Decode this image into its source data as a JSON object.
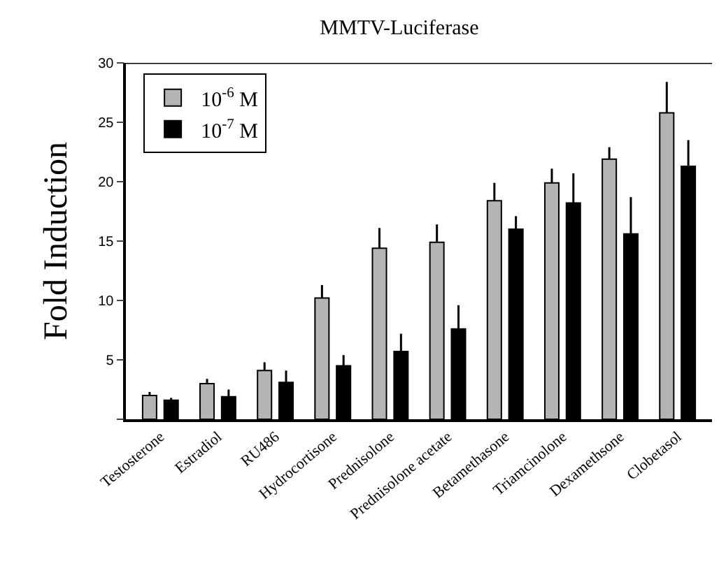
{
  "chart_data": {
    "type": "bar",
    "title": "MMTV-Luciferase",
    "ylabel": "Fold Induction",
    "categories": [
      "Testosterone",
      "Estradiol",
      "RU486",
      "Hydrocortisone",
      "Prednisolone",
      "Prednisolone acetate",
      "Betamethasone",
      "Triamcinolone",
      "Dexamethsone",
      "Clobetasol"
    ],
    "series": [
      {
        "name": "10$^{-6}$ M",
        "color": "#b4b4b4",
        "values": [
          2.0,
          3.0,
          4.1,
          10.2,
          14.4,
          14.9,
          18.4,
          19.9,
          21.9,
          25.8
        ],
        "errors": [
          [
            2.0,
            2.3
          ],
          [
            3.0,
            3.4
          ],
          [
            4.1,
            4.8
          ],
          [
            10.2,
            11.3
          ],
          [
            14.4,
            16.1
          ],
          [
            14.9,
            16.4
          ],
          [
            18.4,
            19.9
          ],
          [
            19.9,
            21.1
          ],
          [
            21.9,
            22.9
          ],
          [
            25.8,
            28.4
          ]
        ]
      },
      {
        "name": "10$^{-7}$ M",
        "color": "#000000",
        "values": [
          1.6,
          1.9,
          3.1,
          4.5,
          5.7,
          7.6,
          16.0,
          18.2,
          15.6,
          21.3
        ],
        "errors": [
          [
            1.6,
            1.8
          ],
          [
            1.9,
            2.5
          ],
          [
            3.1,
            4.1
          ],
          [
            4.5,
            5.4
          ],
          [
            5.7,
            7.2
          ],
          [
            7.6,
            9.6
          ],
          [
            16.0,
            17.1
          ],
          [
            18.2,
            20.7
          ],
          [
            15.6,
            18.7
          ],
          [
            21.3,
            23.5
          ]
        ]
      }
    ],
    "ylim": [
      0,
      30
    ],
    "yticks": [
      {
        "value": 0,
        "label": null
      },
      5,
      10,
      15,
      20,
      25,
      30
    ],
    "legend": "top left"
  }
}
